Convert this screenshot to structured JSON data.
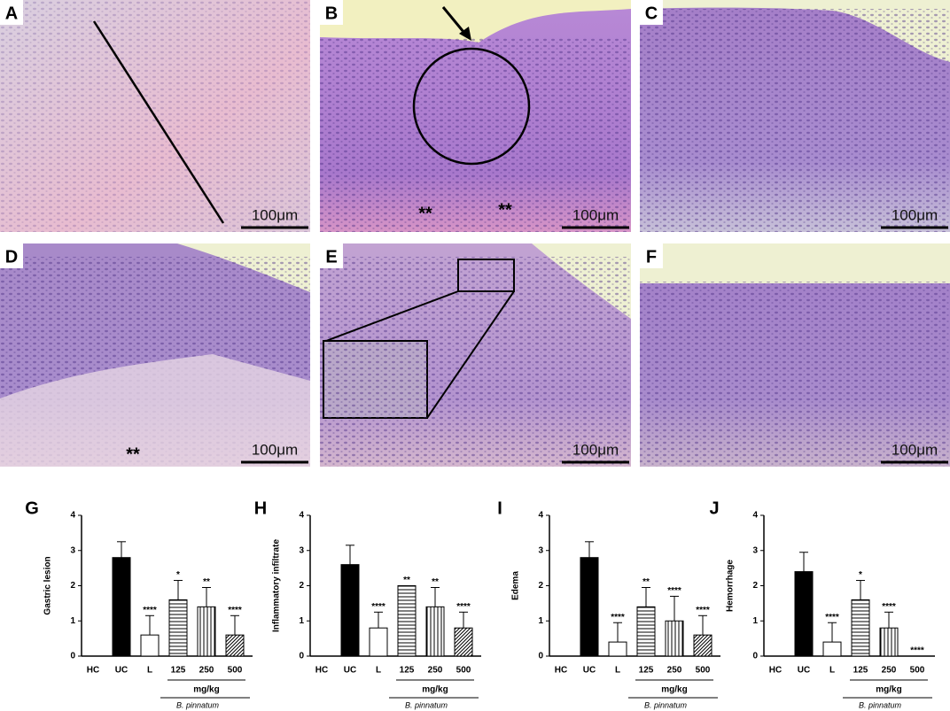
{
  "panels": [
    {
      "label": "A",
      "scale": "100μm"
    },
    {
      "label": "B",
      "scale": "100μm",
      "notes": [
        "**",
        "**"
      ]
    },
    {
      "label": "C",
      "scale": "100μm"
    },
    {
      "label": "D",
      "scale": "100μm",
      "notes": [
        "**"
      ]
    },
    {
      "label": "E",
      "scale": "100μm"
    },
    {
      "label": "F",
      "scale": "100μm"
    }
  ],
  "chart_data": [
    {
      "type": "bar",
      "panel": "G",
      "ylabel": "Gastric lesion",
      "categories": [
        "HC",
        "UC",
        "L",
        "125",
        "250",
        "500"
      ],
      "values": [
        0,
        2.8,
        0.6,
        1.6,
        1.4,
        0.6
      ],
      "errors": [
        0,
        0.45,
        0.55,
        0.55,
        0.55,
        0.55
      ],
      "annotations": [
        null,
        null,
        "****",
        "*",
        "**",
        "****"
      ],
      "fills": [
        "white",
        "black",
        "white",
        "hlines",
        "vlines",
        "dlines"
      ],
      "ylim": [
        0,
        4
      ],
      "yticks": [
        0,
        1,
        2,
        3,
        4
      ],
      "group_label": "mg/kg",
      "footnote": "B. pinnatum"
    },
    {
      "type": "bar",
      "panel": "H",
      "ylabel": "Inflammatory infiltrate",
      "categories": [
        "HC",
        "UC",
        "L",
        "125",
        "250",
        "500"
      ],
      "values": [
        0,
        2.6,
        0.8,
        2.0,
        1.4,
        0.8
      ],
      "errors": [
        0,
        0.55,
        0.45,
        0,
        0.55,
        0.45
      ],
      "annotations": [
        null,
        null,
        "****",
        "**",
        "**",
        "****"
      ],
      "fills": [
        "white",
        "black",
        "white",
        "hlines",
        "vlines",
        "dlines"
      ],
      "ylim": [
        0,
        4
      ],
      "yticks": [
        0,
        1,
        2,
        3,
        4
      ],
      "group_label": "mg/kg",
      "footnote": "B. pinnatum"
    },
    {
      "type": "bar",
      "panel": "I",
      "ylabel": "Edema",
      "categories": [
        "HC",
        "UC",
        "L",
        "125",
        "250",
        "500"
      ],
      "values": [
        0,
        2.8,
        0.4,
        1.4,
        1.0,
        0.6
      ],
      "errors": [
        0,
        0.45,
        0.55,
        0.55,
        0.7,
        0.55
      ],
      "annotations": [
        null,
        null,
        "****",
        "**",
        "****",
        "****"
      ],
      "fills": [
        "white",
        "black",
        "white",
        "hlines",
        "vlines",
        "dlines"
      ],
      "ylim": [
        0,
        4
      ],
      "yticks": [
        0,
        1,
        2,
        3,
        4
      ],
      "group_label": "mg/kg",
      "footnote": "B. pinnatum"
    },
    {
      "type": "bar",
      "panel": "J",
      "ylabel": "Hemorrhage",
      "categories": [
        "HC",
        "UC",
        "L",
        "125",
        "250",
        "500"
      ],
      "values": [
        0,
        2.4,
        0.4,
        1.6,
        0.8,
        0
      ],
      "errors": [
        0,
        0.55,
        0.55,
        0.55,
        0.45,
        0
      ],
      "annotations": [
        null,
        null,
        "****",
        "*",
        "****",
        "****"
      ],
      "fills": [
        "white",
        "black",
        "white",
        "hlines",
        "vlines",
        "dlines"
      ],
      "ylim": [
        0,
        4
      ],
      "yticks": [
        0,
        1,
        2,
        3,
        4
      ],
      "group_label": "mg/kg",
      "footnote": "B. pinnatum"
    }
  ]
}
